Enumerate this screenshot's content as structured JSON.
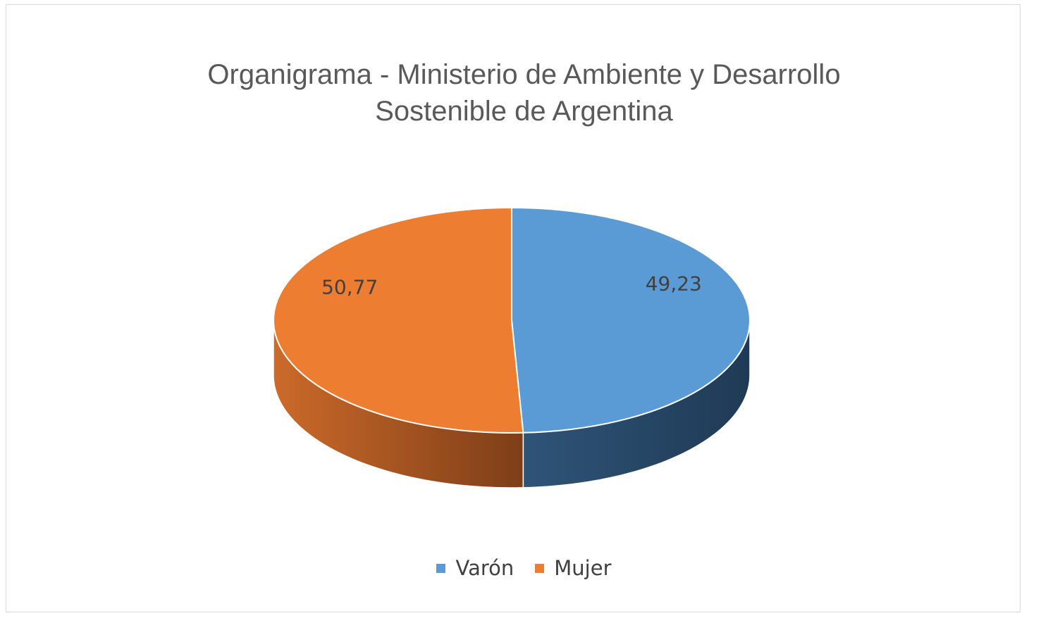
{
  "chart_data": {
    "type": "pie",
    "style": "3d",
    "title": "Organigrama - Ministerio de Ambiente y Desarrollo Sostenible de Argentina",
    "title_lines": [
      "Organigrama - Ministerio de Ambiente y Desarrollo",
      "Sostenible de Argentina"
    ],
    "labels": [
      "Varón",
      "Mujer"
    ],
    "values": [
      49.23,
      50.77
    ],
    "value_labels": [
      "49,23",
      "50,77"
    ],
    "colors": [
      "#5b9bd5",
      "#ed7d31"
    ],
    "side_colors": [
      "#22405e",
      "#a8501d"
    ],
    "legend_position": "bottom"
  }
}
